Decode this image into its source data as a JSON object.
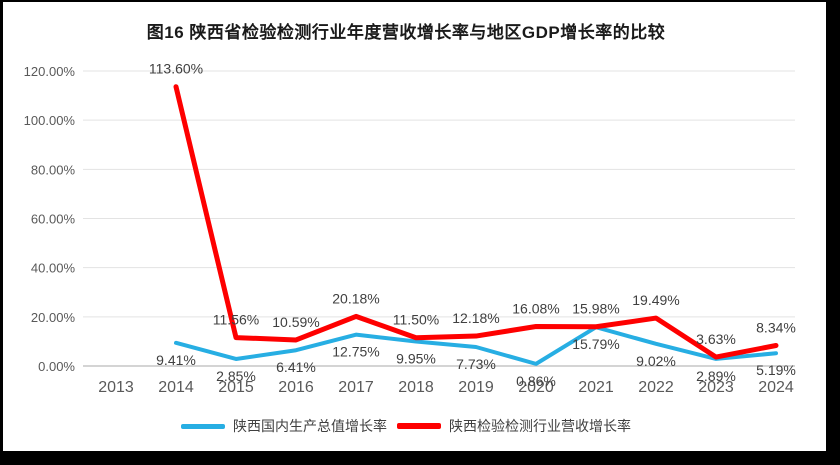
{
  "figure": {
    "title": "图16  陕西省检验检测行业年度营收增长率与地区GDP增长率的比较"
  },
  "colors": {
    "gdp_line": "#27AEE3",
    "revenue_line": "#FE0000",
    "gridline": "#E3E3E3",
    "axis_line": "#C6C6C6",
    "tick_text": "#595959",
    "data_label_text": "#404040",
    "frame": "#000000",
    "background": "#FFFFFF"
  },
  "legend": {
    "items": [
      {
        "label": "陕西国内生产总值增长率",
        "color_key": "gdp_line",
        "swatch": "line"
      },
      {
        "label": "陕西检验检测行业营收增长率",
        "color_key": "revenue_line",
        "swatch": "line"
      }
    ]
  },
  "chart_data": {
    "type": "line",
    "title": "图16  陕西省检验检测行业年度营收增长率与地区GDP增长率的比较",
    "categories": [
      "2013",
      "2014",
      "2015",
      "2016",
      "2017",
      "2018",
      "2019",
      "2020",
      "2021",
      "2022",
      "2023",
      "2024"
    ],
    "series": [
      {
        "name": "陕西国内生产总值增长率",
        "color_key": "gdp_line",
        "values": [
          null,
          9.41,
          2.85,
          6.41,
          12.75,
          9.95,
          7.73,
          0.86,
          15.79,
          9.02,
          2.89,
          5.19
        ],
        "data_labels": [
          "",
          "9.41%",
          "2.85%",
          "6.41%",
          "12.75%",
          "9.95%",
          "7.73%",
          "0.86%",
          "15.79%",
          "9.02%",
          "2.89%",
          "5.19%"
        ],
        "label_position": "below"
      },
      {
        "name": "陕西检验检测行业营收增长率",
        "color_key": "revenue_line",
        "values": [
          null,
          113.6,
          11.56,
          10.59,
          20.18,
          11.5,
          12.18,
          16.08,
          15.98,
          19.49,
          3.63,
          8.34
        ],
        "data_labels": [
          "",
          "113.60%",
          "11.56%",
          "10.59%",
          "20.18%",
          "11.50%",
          "12.18%",
          "16.08%",
          "15.98%",
          "19.49%",
          "3.63%",
          "8.34%"
        ],
        "label_position": "above"
      }
    ],
    "xlabel": "",
    "ylabel": "",
    "ylim": [
      0,
      120
    ],
    "ytick_step": 20,
    "ytick_labels": [
      "0.00%",
      "20.00%",
      "40.00%",
      "60.00%",
      "80.00%",
      "100.00%",
      "120.00%"
    ],
    "grid": true,
    "legend_position": "bottom"
  }
}
